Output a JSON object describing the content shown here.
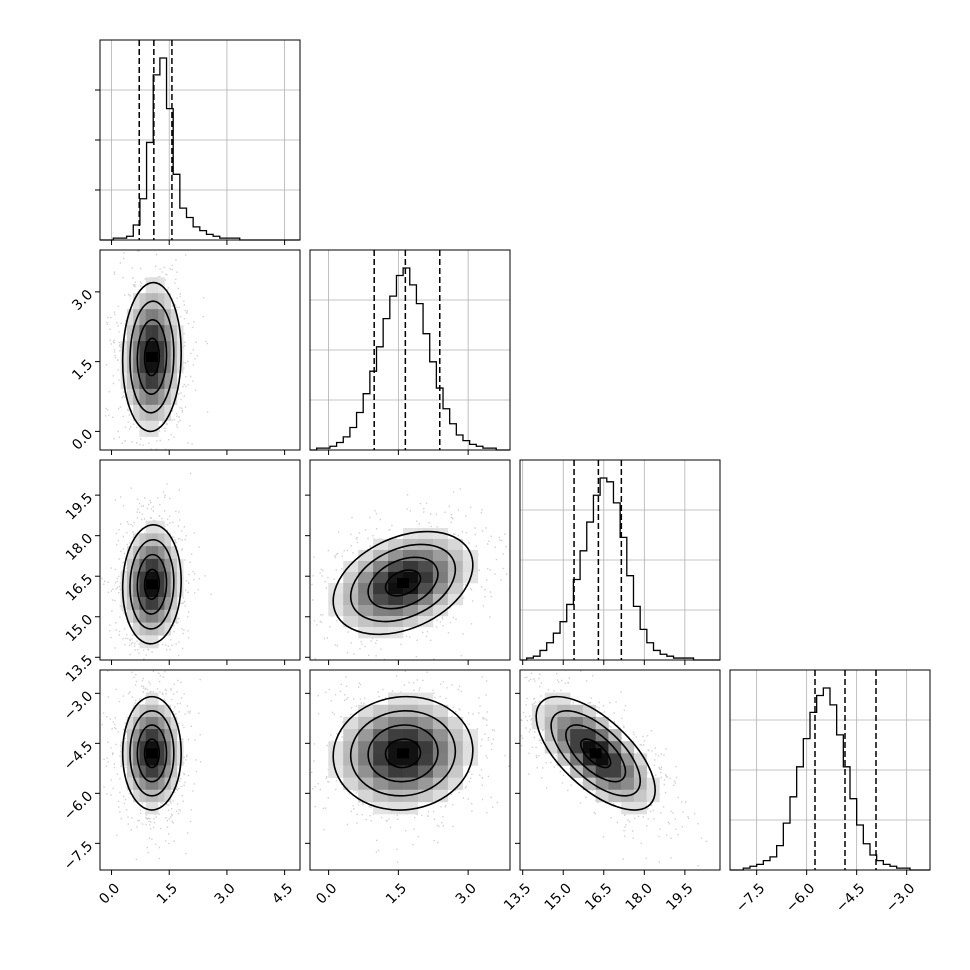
{
  "chart_data": {
    "type": "corner",
    "parameters": 4,
    "ticks": {
      "p0": [
        "0.0",
        "1.5",
        "3.0",
        "4.5"
      ],
      "p1": [
        "0.0",
        "1.5",
        "3.0"
      ],
      "p2": [
        "13.5",
        "15.0",
        "16.5",
        "18.0",
        "19.5"
      ],
      "p3": [
        "−7.5",
        "−6.0",
        "−4.5",
        "−3.0"
      ]
    },
    "ranges": {
      "p0": [
        -0.3,
        4.9
      ],
      "p1": [
        -0.4,
        3.9
      ],
      "p2": [
        13.4,
        20.8
      ],
      "p3": [
        -8.3,
        -2.3
      ]
    },
    "medians": {
      "p0": 1.1,
      "p1": 1.65,
      "p2": 16.3,
      "p3": -4.85
    },
    "quantiles_16_84": {
      "p0": [
        0.72,
        1.57
      ],
      "p1": [
        0.98,
        2.39
      ],
      "p2": [
        15.4,
        17.15
      ],
      "p3": [
        -5.75,
        -3.92
      ]
    },
    "marginal_hist": {
      "p0": {
        "edges_start": -0.3,
        "bin_width": 0.173,
        "counts": [
          0.0,
          0.0,
          0.01,
          0.01,
          0.02,
          0.08,
          0.22,
          0.52,
          0.88,
          0.97,
          0.7,
          0.35,
          0.17,
          0.12,
          0.07,
          0.05,
          0.03,
          0.02,
          0.01,
          0.01,
          0.01,
          0.0,
          0.0,
          0.0,
          0.0,
          0.0,
          0.0,
          0.0,
          0.0,
          0.0
        ]
      },
      "p1": {
        "edges_start": -0.4,
        "bin_width": 0.143,
        "counts": [
          0.0,
          0.01,
          0.01,
          0.02,
          0.04,
          0.07,
          0.12,
          0.2,
          0.3,
          0.42,
          0.55,
          0.7,
          0.82,
          0.93,
          0.97,
          0.88,
          0.78,
          0.62,
          0.47,
          0.33,
          0.22,
          0.14,
          0.08,
          0.05,
          0.03,
          0.02,
          0.01,
          0.01,
          0.0,
          0.0
        ]
      },
      "p2": {
        "edges_start": 13.4,
        "bin_width": 0.247,
        "counts": [
          0.0,
          0.01,
          0.02,
          0.05,
          0.09,
          0.14,
          0.2,
          0.29,
          0.42,
          0.57,
          0.72,
          0.86,
          0.95,
          0.93,
          0.82,
          0.64,
          0.44,
          0.28,
          0.16,
          0.09,
          0.05,
          0.03,
          0.02,
          0.01,
          0.01,
          0.01,
          0.0,
          0.0,
          0.0,
          0.0
        ]
      },
      "p3": {
        "edges_start": -8.3,
        "bin_width": 0.2,
        "counts": [
          0.0,
          0.0,
          0.01,
          0.02,
          0.03,
          0.05,
          0.07,
          0.13,
          0.25,
          0.39,
          0.55,
          0.7,
          0.84,
          0.93,
          0.97,
          0.88,
          0.72,
          0.55,
          0.38,
          0.24,
          0.14,
          0.08,
          0.05,
          0.03,
          0.02,
          0.01,
          0.01,
          0.0,
          0.0,
          0.0
        ]
      }
    },
    "pairs": [
      {
        "x": "p0",
        "y": "p1",
        "cx": 1.05,
        "cy": 1.6,
        "sx": 0.38,
        "sy": 0.8,
        "rho": 0.05
      },
      {
        "x": "p0",
        "y": "p2",
        "cx": 1.05,
        "cy": 16.2,
        "sx": 0.38,
        "sy": 1.1,
        "rho": 0.05
      },
      {
        "x": "p1",
        "y": "p2",
        "cx": 1.6,
        "cy": 16.25,
        "sx": 0.75,
        "sy": 0.95,
        "rho": 0.35
      },
      {
        "x": "p0",
        "y": "p3",
        "cx": 1.05,
        "cy": -4.8,
        "sx": 0.38,
        "sy": 0.85,
        "rho": 0.0
      },
      {
        "x": "p1",
        "y": "p3",
        "cx": 1.6,
        "cy": -4.8,
        "sx": 0.75,
        "sy": 0.85,
        "rho": 0.05
      },
      {
        "x": "p2",
        "y": "p3",
        "cx": 16.2,
        "cy": -4.8,
        "sx": 1.1,
        "sy": 0.85,
        "rho": -0.65
      }
    ],
    "contour_levels": [
      0.118,
      0.393,
      0.675,
      0.865
    ],
    "grid": true
  }
}
